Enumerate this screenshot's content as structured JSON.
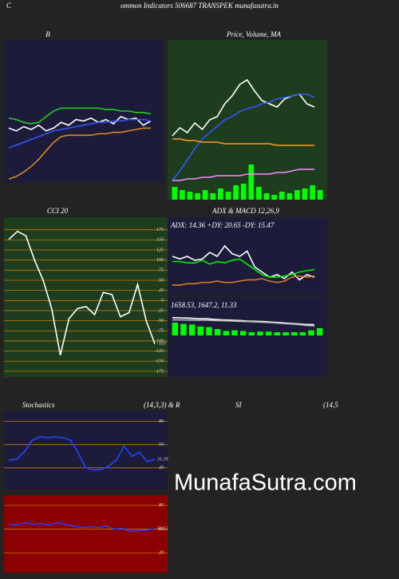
{
  "header": {
    "corner": "C",
    "title": "ommon  Indicators 506687 TRANSPEK munafasutra.in",
    "watermark": "MunafaSutra.com"
  },
  "chart_data": [
    {
      "type": "line",
      "title": "B",
      "background": "#1c1c3a",
      "ylim": [
        0,
        100
      ],
      "series": [
        {
          "color": "#22cc22",
          "values": [
            45,
            44,
            42,
            41,
            42,
            46,
            50,
            52,
            52,
            52,
            52,
            52,
            52,
            51,
            51,
            50,
            50,
            49,
            49,
            48
          ]
        },
        {
          "color": "#ffffff",
          "values": [
            38,
            36,
            39,
            37,
            40,
            36,
            38,
            42,
            40,
            44,
            43,
            45,
            42,
            44,
            41,
            46,
            44,
            45,
            40,
            43
          ]
        },
        {
          "color": "#3355ff",
          "values": [
            24,
            26,
            28,
            30,
            32,
            34,
            36,
            37,
            38,
            39,
            40,
            41,
            42,
            42,
            43,
            43,
            44,
            44,
            44,
            43
          ]
        },
        {
          "color": "#dd8822",
          "values": [
            2,
            4,
            7,
            11,
            16,
            22,
            28,
            32,
            33,
            33,
            33,
            33,
            34,
            34,
            35,
            35,
            36,
            37,
            38,
            38
          ]
        }
      ]
    },
    {
      "type": "line",
      "title": "Price, Volume, MA",
      "background": "#1e3d1e",
      "ylim": [
        0,
        100
      ],
      "y2lim": [
        0,
        100
      ],
      "series": [
        {
          "color": "#00ff00",
          "style": "bar",
          "axis": "y2",
          "values": [
            8,
            6,
            5,
            4,
            6,
            4,
            7,
            5,
            9,
            10,
            22,
            8,
            4,
            3,
            5,
            4,
            6,
            7,
            9,
            6
          ]
        },
        {
          "color": "#ffffff",
          "values": [
            40,
            45,
            42,
            48,
            44,
            50,
            52,
            60,
            65,
            72,
            75,
            68,
            62,
            60,
            58,
            63,
            65,
            66,
            60,
            58
          ]
        },
        {
          "color": "#3355ff",
          "values": [
            12,
            18,
            25,
            32,
            38,
            42,
            46,
            50,
            52,
            55,
            57,
            58,
            60,
            61,
            63,
            64,
            65,
            66,
            66,
            64
          ]
        },
        {
          "color": "#ff9922",
          "values": [
            38,
            38,
            37,
            37,
            36,
            36,
            36,
            35,
            35,
            35,
            35,
            35,
            35,
            35,
            34,
            34,
            34,
            34,
            34,
            34
          ]
        },
        {
          "color": "#ff88ff",
          "values": [
            12,
            12,
            13,
            13,
            14,
            14,
            15,
            15,
            15,
            15,
            16,
            16,
            16,
            16,
            17,
            17,
            18,
            19,
            19,
            19
          ]
        }
      ]
    },
    {
      "type": "line",
      "title": "CCI 20",
      "background": "#1e3d1e",
      "grid": true,
      "end_label": true,
      "ylim": [
        -189,
        206
      ],
      "yticks": [
        175,
        150,
        125,
        100,
        75,
        50,
        25,
        0,
        -25,
        -50,
        -75,
        -100,
        -125,
        -150,
        -175
      ],
      "series": [
        {
          "color": "#ffffff",
          "values": [
            151,
            171,
            160,
            100,
            50,
            -20,
            -135,
            -45,
            -20,
            -15,
            -35,
            20,
            15,
            -40,
            -30,
            40,
            -50,
            -107
          ]
        }
      ]
    },
    {
      "type": "line",
      "title": "ADX  & MACD 12,26,9",
      "annotation": "ADX: 14.36  +DY: 20.65 -DY: 15.47",
      "background": "#1c1c3a",
      "ylim": [
        0,
        60
      ],
      "series": [
        {
          "color": "#ffffff",
          "values": [
            30,
            28,
            30,
            27,
            28,
            33,
            30,
            38,
            32,
            30,
            34,
            22,
            18,
            14,
            16,
            13,
            18,
            12,
            16,
            14
          ]
        },
        {
          "color": "#00ee00",
          "values": [
            26,
            26,
            25,
            25,
            27,
            24,
            26,
            25,
            27,
            28,
            24,
            20,
            16,
            14,
            14,
            15,
            16,
            18,
            19,
            20
          ]
        },
        {
          "color": "#dd7722",
          "values": [
            8,
            8,
            9,
            9,
            10,
            10,
            11,
            10,
            10,
            11,
            12,
            12,
            13,
            11,
            10,
            11,
            14,
            15,
            14,
            15
          ]
        }
      ]
    },
    {
      "type": "line",
      "annotation": "1658.53, 1647.2, 11.33",
      "background": "#1c1c3a",
      "ylim": [
        1200,
        1900
      ],
      "y2lim": [
        -65,
        60
      ],
      "series": [
        {
          "color": "#00ff00",
          "style": "bar",
          "axis": "y2",
          "values": [
            20,
            18,
            17,
            14,
            13,
            10,
            7,
            8,
            7,
            5,
            6,
            6,
            5,
            5,
            5,
            5,
            8,
            11.33
          ]
        },
        {
          "color": "#ffffff",
          "values": [
            1720,
            1718,
            1716,
            1712,
            1710,
            1705,
            1700,
            1698,
            1695,
            1690,
            1688,
            1685,
            1680,
            1675,
            1670,
            1665,
            1660,
            1658.53
          ]
        },
        {
          "color": "#bbbbbb",
          "values": [
            1700,
            1700,
            1699,
            1698,
            1697,
            1695,
            1693,
            1690,
            1688,
            1685,
            1682,
            1679,
            1675,
            1670,
            1665,
            1660,
            1652,
            1647.2
          ]
        }
      ]
    },
    {
      "type": "line",
      "title": "Stochastics",
      "subtitle": "(14,3,3) & R",
      "background": "#1c1c3a",
      "grid": true,
      "end_label": true,
      "ylim": [
        -7,
        93
      ],
      "yticks": [
        80,
        50,
        20
      ],
      "series": [
        {
          "color": "#2244ff",
          "values": [
            30,
            31,
            40,
            55,
            60,
            59,
            60,
            59,
            56,
            40,
            20,
            17,
            18,
            22,
            30,
            48,
            35,
            40,
            28,
            31.19
          ]
        }
      ]
    },
    {
      "type": "line",
      "title": "SI",
      "subtitle": "(14,5",
      "background": "#8b0000",
      "grid": true,
      "end_label": true,
      "ylim": [
        -5,
        93
      ],
      "yticks": [
        80,
        50,
        20
      ],
      "series": [
        {
          "color": "#2244ff",
          "values": [
            56,
            55,
            58,
            56,
            57,
            55,
            58,
            56,
            54,
            52,
            53,
            52,
            54,
            50,
            51,
            47,
            48,
            49,
            50.52
          ]
        }
      ]
    }
  ]
}
